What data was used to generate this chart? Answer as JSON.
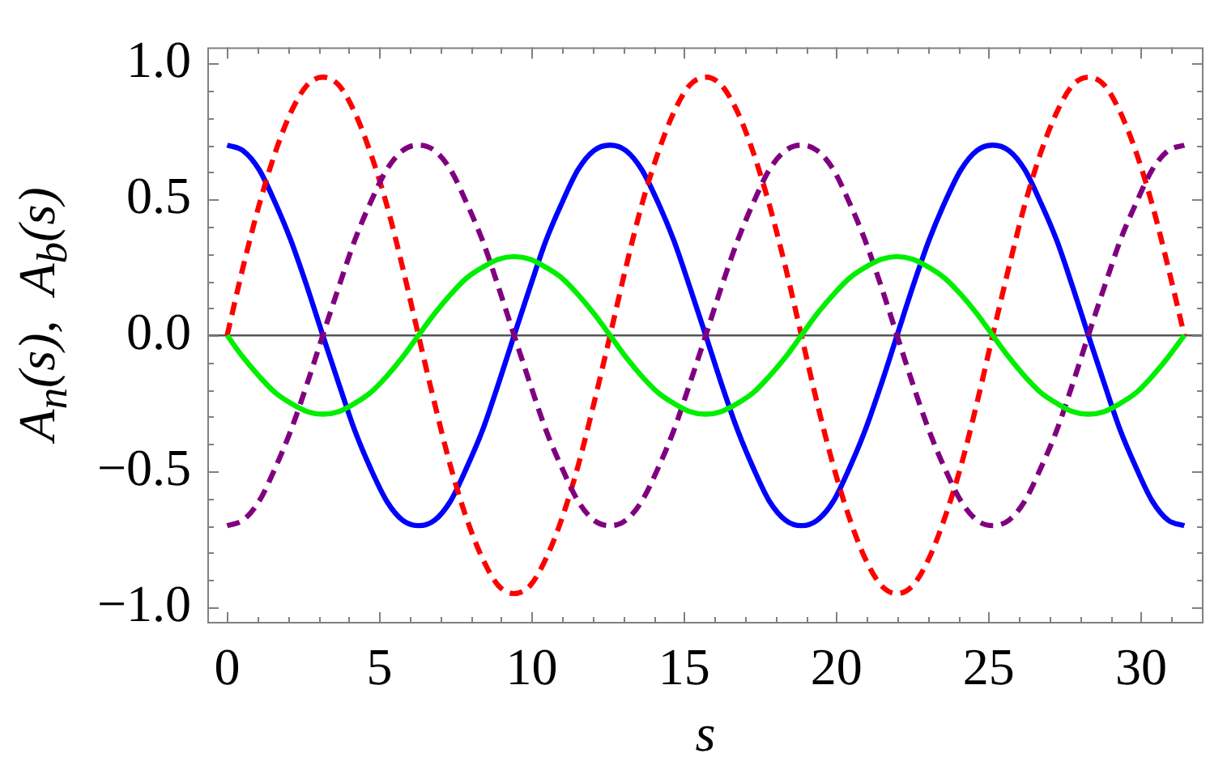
{
  "chart_data": {
    "type": "line",
    "xlabel": "s",
    "ylabel": "A$_{n}$(s),  A$_{b}$(s)",
    "x": [
      0,
      0.52,
      1.05,
      1.57,
      2.09,
      2.62,
      3.14,
      3.67,
      4.19,
      4.71,
      5.24,
      5.76,
      6.28,
      6.81,
      7.33,
      7.85,
      8.38,
      8.9,
      9.42,
      9.95,
      10.47,
      11,
      11.52,
      12.04,
      12.57,
      13.09,
      13.61,
      14.14,
      14.66,
      15.18,
      15.71,
      16.23,
      16.76,
      17.28,
      17.8,
      18.33,
      18.85,
      19.37,
      19.9,
      20.42,
      20.94,
      21.47,
      21.99,
      22.51,
      23.04,
      23.56,
      24.09,
      24.61,
      25.13,
      25.66,
      26.18,
      26.7,
      27.23,
      27.75,
      28.27,
      28.8,
      29.32,
      29.85,
      30.37,
      30.89,
      31.42
    ],
    "series": [
      {
        "color": "#0000ff",
        "line_style": "solid",
        "values": [
          0.7,
          0.68,
          0.61,
          0.49,
          0.35,
          0.18,
          0,
          -0.18,
          -0.35,
          -0.49,
          -0.61,
          -0.68,
          -0.7,
          -0.68,
          -0.61,
          -0.49,
          -0.35,
          -0.18,
          0,
          0.18,
          0.35,
          0.49,
          0.61,
          0.68,
          0.7,
          0.68,
          0.61,
          0.49,
          0.35,
          0.18,
          0,
          -0.18,
          -0.35,
          -0.49,
          -0.61,
          -0.68,
          -0.7,
          -0.68,
          -0.61,
          -0.49,
          -0.35,
          -0.18,
          0,
          0.18,
          0.35,
          0.49,
          0.61,
          0.68,
          0.7,
          0.68,
          0.61,
          0.49,
          0.35,
          0.18,
          0,
          -0.18,
          -0.35,
          -0.49,
          -0.61,
          -0.68,
          -0.7
        ]
      },
      {
        "color": "#ff0000",
        "line_style": "dashed",
        "values": [
          0,
          0.25,
          0.48,
          0.67,
          0.82,
          0.92,
          0.95,
          0.92,
          0.82,
          0.67,
          0.48,
          0.25,
          0,
          -0.25,
          -0.48,
          -0.67,
          -0.82,
          -0.92,
          -0.95,
          -0.92,
          -0.82,
          -0.67,
          -0.48,
          -0.25,
          0,
          0.25,
          0.48,
          0.67,
          0.82,
          0.92,
          0.95,
          0.92,
          0.82,
          0.67,
          0.48,
          0.25,
          0,
          -0.25,
          -0.48,
          -0.67,
          -0.82,
          -0.92,
          -0.95,
          -0.92,
          -0.82,
          -0.67,
          -0.48,
          -0.25,
          0,
          0.25,
          0.48,
          0.67,
          0.82,
          0.92,
          0.95,
          0.92,
          0.82,
          0.67,
          0.48,
          0.25,
          0
        ]
      },
      {
        "color": "#800080",
        "line_style": "dashed",
        "values": [
          -0.7,
          -0.68,
          -0.61,
          -0.49,
          -0.35,
          -0.18,
          0,
          0.18,
          0.35,
          0.49,
          0.61,
          0.68,
          0.7,
          0.68,
          0.61,
          0.49,
          0.35,
          0.18,
          0,
          -0.18,
          -0.35,
          -0.49,
          -0.61,
          -0.68,
          -0.7,
          -0.68,
          -0.61,
          -0.49,
          -0.35,
          -0.18,
          0,
          0.18,
          0.35,
          0.49,
          0.61,
          0.68,
          0.7,
          0.68,
          0.61,
          0.49,
          0.35,
          0.18,
          0,
          -0.18,
          -0.35,
          -0.49,
          -0.61,
          -0.68,
          -0.7,
          -0.68,
          -0.61,
          -0.49,
          -0.35,
          -0.18,
          0,
          0.18,
          0.35,
          0.49,
          0.61,
          0.68,
          0.7
        ]
      },
      {
        "color": "#00ee00",
        "line_style": "solid",
        "values": [
          0,
          -0.08,
          -0.15,
          -0.21,
          -0.25,
          -0.28,
          -0.29,
          -0.28,
          -0.25,
          -0.21,
          -0.15,
          -0.08,
          0,
          0.08,
          0.15,
          0.21,
          0.25,
          0.28,
          0.29,
          0.28,
          0.25,
          0.21,
          0.15,
          0.08,
          0,
          -0.08,
          -0.15,
          -0.21,
          -0.25,
          -0.28,
          -0.29,
          -0.28,
          -0.25,
          -0.21,
          -0.15,
          -0.08,
          0,
          0.08,
          0.15,
          0.21,
          0.25,
          0.28,
          0.29,
          0.28,
          0.25,
          0.21,
          0.15,
          0.08,
          0,
          -0.08,
          -0.15,
          -0.21,
          -0.25,
          -0.28,
          -0.29,
          -0.28,
          -0.25,
          -0.21,
          -0.15,
          -0.08,
          0
        ]
      }
    ],
    "xlim": [
      -0.65,
      32.05
    ],
    "ylim": [
      -1.06,
      1.06
    ],
    "xticks": [
      0,
      {
        "value": 1,
        "label": null
      },
      {
        "value": 2,
        "label": null
      },
      {
        "value": 3,
        "label": null
      },
      {
        "value": 4,
        "label": null
      },
      5,
      {
        "value": 6,
        "label": null
      },
      {
        "value": 7,
        "label": null
      },
      {
        "value": 8,
        "label": null
      },
      {
        "value": 9,
        "label": null
      },
      10,
      {
        "value": 11,
        "label": null
      },
      {
        "value": 12,
        "label": null
      },
      {
        "value": 13,
        "label": null
      },
      {
        "value": 14,
        "label": null
      },
      15,
      {
        "value": 16,
        "label": null
      },
      {
        "value": 17,
        "label": null
      },
      {
        "value": 18,
        "label": null
      },
      {
        "value": 19,
        "label": null
      },
      20,
      {
        "value": 21,
        "label": null
      },
      {
        "value": 22,
        "label": null
      },
      {
        "value": 23,
        "label": null
      },
      {
        "value": 24,
        "label": null
      },
      25,
      {
        "value": 26,
        "label": null
      },
      {
        "value": 27,
        "label": null
      },
      {
        "value": 28,
        "label": null
      },
      {
        "value": 29,
        "label": null
      },
      30,
      {
        "value": 31,
        "label": null
      }
    ],
    "yticks": [
      {
        "value": -1,
        "label": "−1.0"
      },
      {
        "value": -0.9,
        "label": null
      },
      {
        "value": -0.8,
        "label": null
      },
      {
        "value": -0.7,
        "label": null
      },
      {
        "value": -0.6,
        "label": null
      },
      {
        "value": -0.5,
        "label": "−0.5"
      },
      {
        "value": -0.4,
        "label": null
      },
      {
        "value": -0.3,
        "label": null
      },
      {
        "value": -0.2,
        "label": null
      },
      {
        "value": -0.1,
        "label": null
      },
      {
        "value": 0,
        "label": "0.0"
      },
      {
        "value": 0.1,
        "label": null
      },
      {
        "value": 0.2,
        "label": null
      },
      {
        "value": 0.3,
        "label": null
      },
      {
        "value": 0.4,
        "label": null
      },
      {
        "value": 0.5,
        "label": "0.5"
      },
      {
        "value": 0.6,
        "label": null
      },
      {
        "value": 0.7,
        "label": null
      },
      {
        "value": 0.8,
        "label": null
      },
      {
        "value": 0.9,
        "label": null
      },
      {
        "value": 1,
        "label": "1.0"
      }
    ],
    "ref_lines": [
      {
        "axis": "y",
        "value": 0,
        "color": "#555555"
      }
    ],
    "grid": false,
    "legend": false,
    "marker": "none"
  }
}
